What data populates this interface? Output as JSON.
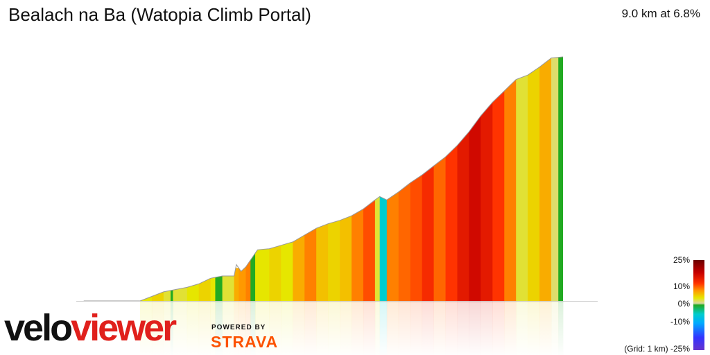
{
  "title": "Bealach na Ba (Watopia Climb Portal)",
  "summary": "9.0 km at 6.8%",
  "brand": {
    "velo": "velo",
    "viewer": "viewer",
    "powered_by": "POWERED BY",
    "strava": "STRAVA",
    "velo_color": "#111111",
    "viewer_color": "#e0201c",
    "strava_color": "#fc5200"
  },
  "legend": {
    "labels": [
      "25%",
      "10%",
      "0%",
      "-10%",
      "-25%"
    ],
    "grid_note": "(Grid: 1 km)",
    "stops": [
      {
        "pct": 25,
        "color": "#6b0000"
      },
      {
        "pct": 18,
        "color": "#c60000"
      },
      {
        "pct": 12,
        "color": "#ff3300"
      },
      {
        "pct": 8,
        "color": "#ff9900"
      },
      {
        "pct": 4,
        "color": "#e6e600"
      },
      {
        "pct": 1,
        "color": "#d8d8a0"
      },
      {
        "pct": 0,
        "color": "#22aa22"
      },
      {
        "pct": -5,
        "color": "#00cccc"
      },
      {
        "pct": -10,
        "color": "#00aaff"
      },
      {
        "pct": -18,
        "color": "#3333ff"
      },
      {
        "pct": -25,
        "color": "#6633cc"
      }
    ]
  },
  "chart_data": {
    "type": "area",
    "x_unit": "km",
    "distance_km": 9.0,
    "average_gradient_pct": 6.8,
    "gradient_range": [
      -25,
      25
    ],
    "grid_spacing_km": 1,
    "grid": false,
    "legend_placement": "right",
    "profile_relative_elevation": [
      {
        "km": -1.2,
        "ele": 0
      },
      {
        "km": 0.0,
        "ele": 0
      },
      {
        "km": 0.25,
        "ele": 4
      },
      {
        "km": 0.5,
        "ele": 8
      },
      {
        "km": 0.75,
        "ele": 10
      },
      {
        "km": 1.0,
        "ele": 12
      },
      {
        "km": 1.25,
        "ele": 15
      },
      {
        "km": 1.5,
        "ele": 20
      },
      {
        "km": 1.75,
        "ele": 22
      },
      {
        "km": 2.0,
        "ele": 22
      },
      {
        "km": 2.05,
        "ele": 32
      },
      {
        "km": 2.15,
        "ele": 26
      },
      {
        "km": 2.25,
        "ele": 30
      },
      {
        "km": 2.5,
        "ele": 45
      },
      {
        "km": 2.75,
        "ele": 46
      },
      {
        "km": 3.0,
        "ele": 49
      },
      {
        "km": 3.25,
        "ele": 52
      },
      {
        "km": 3.5,
        "ele": 58
      },
      {
        "km": 3.75,
        "ele": 64
      },
      {
        "km": 4.0,
        "ele": 68
      },
      {
        "km": 4.25,
        "ele": 71
      },
      {
        "km": 4.5,
        "ele": 75
      },
      {
        "km": 4.75,
        "ele": 81
      },
      {
        "km": 5.0,
        "ele": 89
      },
      {
        "km": 5.1,
        "ele": 92
      },
      {
        "km": 5.25,
        "ele": 89
      },
      {
        "km": 5.5,
        "ele": 96
      },
      {
        "km": 5.75,
        "ele": 104
      },
      {
        "km": 6.0,
        "ele": 111
      },
      {
        "km": 6.25,
        "ele": 119
      },
      {
        "km": 6.5,
        "ele": 127
      },
      {
        "km": 6.75,
        "ele": 137
      },
      {
        "km": 7.0,
        "ele": 149
      },
      {
        "km": 7.25,
        "ele": 163
      },
      {
        "km": 7.5,
        "ele": 175
      },
      {
        "km": 7.75,
        "ele": 185
      },
      {
        "km": 8.0,
        "ele": 195
      },
      {
        "km": 8.25,
        "ele": 199
      },
      {
        "km": 8.5,
        "ele": 206
      },
      {
        "km": 8.75,
        "ele": 214
      },
      {
        "km": 9.0,
        "ele": 215
      }
    ],
    "gradient_segments_pct": [
      {
        "from_km": 0.0,
        "to_km": 0.25,
        "grade": 4
      },
      {
        "from_km": 0.25,
        "to_km": 0.5,
        "grade": 5
      },
      {
        "from_km": 0.5,
        "to_km": 0.65,
        "grade": 3
      },
      {
        "from_km": 0.65,
        "to_km": 0.7,
        "grade": 0
      },
      {
        "from_km": 0.7,
        "to_km": 1.0,
        "grade": 3
      },
      {
        "from_km": 1.0,
        "to_km": 1.25,
        "grade": 4
      },
      {
        "from_km": 1.25,
        "to_km": 1.5,
        "grade": 5
      },
      {
        "from_km": 1.5,
        "to_km": 1.6,
        "grade": 4
      },
      {
        "from_km": 1.6,
        "to_km": 1.75,
        "grade": 0
      },
      {
        "from_km": 1.75,
        "to_km": 2.0,
        "grade": 3
      },
      {
        "from_km": 2.0,
        "to_km": 2.1,
        "grade": 7
      },
      {
        "from_km": 2.1,
        "to_km": 2.25,
        "grade": 8
      },
      {
        "from_km": 2.25,
        "to_km": 2.35,
        "grade": 9
      },
      {
        "from_km": 2.35,
        "to_km": 2.45,
        "grade": 0
      },
      {
        "from_km": 2.45,
        "to_km": 2.75,
        "grade": 4
      },
      {
        "from_km": 2.75,
        "to_km": 3.0,
        "grade": 5
      },
      {
        "from_km": 3.0,
        "to_km": 3.25,
        "grade": 4
      },
      {
        "from_km": 3.25,
        "to_km": 3.5,
        "grade": 7
      },
      {
        "from_km": 3.5,
        "to_km": 3.75,
        "grade": 9
      },
      {
        "from_km": 3.75,
        "to_km": 4.0,
        "grade": 6
      },
      {
        "from_km": 4.0,
        "to_km": 4.25,
        "grade": 5
      },
      {
        "from_km": 4.25,
        "to_km": 4.5,
        "grade": 6
      },
      {
        "from_km": 4.5,
        "to_km": 4.75,
        "grade": 9
      },
      {
        "from_km": 4.75,
        "to_km": 5.0,
        "grade": 11
      },
      {
        "from_km": 5.0,
        "to_km": 5.1,
        "grade": 3
      },
      {
        "from_km": 5.1,
        "to_km": 5.25,
        "grade": -5
      },
      {
        "from_km": 5.25,
        "to_km": 5.5,
        "grade": 9
      },
      {
        "from_km": 5.5,
        "to_km": 5.75,
        "grade": 10
      },
      {
        "from_km": 5.75,
        "to_km": 6.0,
        "grade": 11
      },
      {
        "from_km": 6.0,
        "to_km": 6.25,
        "grade": 13
      },
      {
        "from_km": 6.25,
        "to_km": 6.5,
        "grade": 10
      },
      {
        "from_km": 6.5,
        "to_km": 6.75,
        "grade": 12
      },
      {
        "from_km": 6.75,
        "to_km": 7.0,
        "grade": 15
      },
      {
        "from_km": 7.0,
        "to_km": 7.25,
        "grade": 17
      },
      {
        "from_km": 7.25,
        "to_km": 7.5,
        "grade": 15
      },
      {
        "from_km": 7.5,
        "to_km": 7.75,
        "grade": 12
      },
      {
        "from_km": 7.75,
        "to_km": 8.0,
        "grade": 9
      },
      {
        "from_km": 8.0,
        "to_km": 8.25,
        "grade": 3
      },
      {
        "from_km": 8.25,
        "to_km": 8.5,
        "grade": 5
      },
      {
        "from_km": 8.5,
        "to_km": 8.75,
        "grade": 7
      },
      {
        "from_km": 8.75,
        "to_km": 8.9,
        "grade": 2
      },
      {
        "from_km": 8.9,
        "to_km": 9.0,
        "grade": 0
      }
    ]
  }
}
